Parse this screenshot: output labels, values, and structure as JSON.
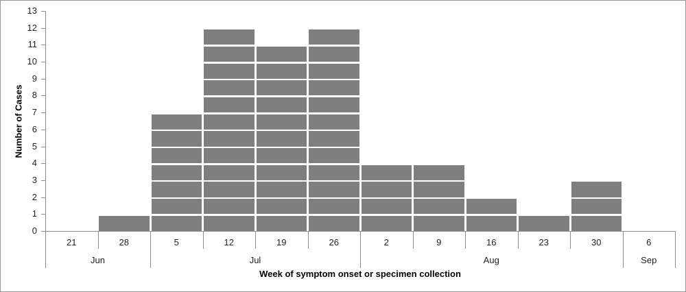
{
  "chart_data": {
    "type": "bar",
    "title": "",
    "xlabel": "Week of symptom onset or specimen collection",
    "ylabel": "Number of Cases",
    "ylim": [
      0,
      13
    ],
    "ytick_step": 1,
    "legend": "none",
    "grid": "white unit gridlines drawn over bars",
    "bar_color": "#7f7f7f",
    "axis_color": "#8c8c8c",
    "text_color": "#1f1f1f",
    "border_color": "#969696",
    "categories": [
      "Jun 21",
      "Jun 28",
      "Jul 5",
      "Jul 12",
      "Jul 19",
      "Jul 26",
      "Aug 2",
      "Aug 9",
      "Aug 16",
      "Aug 23",
      "Aug 30",
      "Sep 6"
    ],
    "values": [
      0,
      1,
      7,
      12,
      11,
      12,
      4,
      4,
      2,
      1,
      3,
      0
    ],
    "months": [
      {
        "label": "Jun",
        "weeks": [
          {
            "label": "21",
            "value": 0
          },
          {
            "label": "28",
            "value": 1
          }
        ]
      },
      {
        "label": "Jul",
        "weeks": [
          {
            "label": "5",
            "value": 7
          },
          {
            "label": "12",
            "value": 12
          },
          {
            "label": "19",
            "value": 11
          },
          {
            "label": "26",
            "value": 12
          }
        ]
      },
      {
        "label": "Aug",
        "weeks": [
          {
            "label": "2",
            "value": 4
          },
          {
            "label": "9",
            "value": 4
          },
          {
            "label": "16",
            "value": 2
          },
          {
            "label": "23",
            "value": 1
          },
          {
            "label": "30",
            "value": 3
          }
        ]
      },
      {
        "label": "Sep",
        "weeks": [
          {
            "label": "6",
            "value": 0
          }
        ]
      }
    ]
  }
}
